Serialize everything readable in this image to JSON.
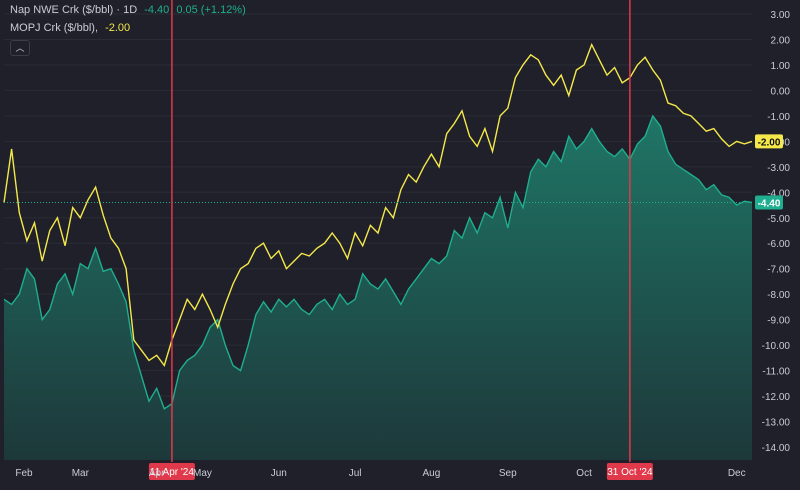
{
  "legend": {
    "series1_name": "Nap NWE Crk ($/bbl) · 1D",
    "series1_last": "-4.40",
    "series1_change": "0.05 (+1.12%)",
    "series2_name": "MOPJ Crk ($/bbl),",
    "series2_last": "-2.00",
    "collapse_icon": "chevron-up-icon"
  },
  "colors": {
    "background": "#1f2029",
    "grid": "#2a2c36",
    "axis_text": "#c9ccd6",
    "series1": "#1fae8f",
    "series1_fill_top": "#1f7a69",
    "series1_fill_bottom": "#1d3b3c",
    "series2": "#f5e84a",
    "crosshair": "#e0394b"
  },
  "chart_data": {
    "type": "area",
    "ylim": [
      -14.4,
      3.4
    ],
    "y_ticks": [
      "3.00",
      "2.00",
      "1.00",
      "0.00",
      "-1.00",
      "-2.00",
      "-3.00",
      "-4.00",
      "-5.00",
      "-6.00",
      "-7.00",
      "-8.00",
      "-9.00",
      "-10.00",
      "-11.00",
      "-12.00",
      "-13.00",
      "-14.00"
    ],
    "x_labels": [
      "Feb",
      "Mar",
      "Apr",
      "May",
      "Jun",
      "Jul",
      "Aug",
      "Sep",
      "Oct",
      "Dec"
    ],
    "x_label_pos": [
      0.0,
      1.0,
      2.0,
      2.6,
      3.6,
      4.6,
      5.6,
      6.6,
      7.6,
      9.6
    ],
    "series": [
      {
        "name": "Nap NWE Crk ($/bbl)",
        "last_value": -4.4,
        "x": [
          0,
          0.1,
          0.2,
          0.3,
          0.4,
          0.5,
          0.6,
          0.7,
          0.8,
          0.9,
          1.0,
          1.1,
          1.2,
          1.3,
          1.4,
          1.5,
          1.6,
          1.7,
          1.8,
          1.9,
          2.0,
          2.1,
          2.2,
          2.3,
          2.4,
          2.5,
          2.6,
          2.7,
          2.8,
          2.9,
          3.0,
          3.1,
          3.2,
          3.3,
          3.4,
          3.5,
          3.6,
          3.7,
          3.8,
          3.9,
          4.0,
          4.1,
          4.2,
          4.3,
          4.4,
          4.5,
          4.6,
          4.7,
          4.8,
          4.9,
          5.0,
          5.1,
          5.2,
          5.3,
          5.4,
          5.5,
          5.6,
          5.7,
          5.8,
          5.9,
          6.0,
          6.1,
          6.2,
          6.3,
          6.4,
          6.5,
          6.6,
          6.7,
          6.8,
          6.9,
          7.0,
          7.1,
          7.2,
          7.3,
          7.4,
          7.5,
          7.6,
          7.7,
          7.8,
          7.9,
          8.0,
          8.1,
          8.2,
          8.3,
          8.4,
          8.5,
          8.6,
          8.7,
          8.8,
          8.9,
          9.0,
          9.1,
          9.2,
          9.3,
          9.4,
          9.5,
          9.6,
          9.7,
          9.8
        ],
        "values": [
          -8.2,
          -8.4,
          -8.0,
          -7.0,
          -7.4,
          -9.0,
          -8.6,
          -7.6,
          -7.2,
          -8.0,
          -6.8,
          -7.0,
          -6.2,
          -7.1,
          -7.0,
          -7.6,
          -8.3,
          -10.2,
          -11.2,
          -12.2,
          -11.7,
          -12.5,
          -12.3,
          -11.0,
          -10.6,
          -10.4,
          -10.0,
          -9.3,
          -9.0,
          -10.0,
          -10.8,
          -11.0,
          -10.0,
          -8.8,
          -8.3,
          -8.7,
          -8.2,
          -8.5,
          -8.2,
          -8.6,
          -8.8,
          -8.4,
          -8.2,
          -8.6,
          -8.0,
          -8.4,
          -8.2,
          -7.2,
          -7.6,
          -7.8,
          -7.4,
          -7.9,
          -8.4,
          -7.8,
          -7.4,
          -7.0,
          -6.6,
          -6.8,
          -6.5,
          -5.5,
          -5.8,
          -5.0,
          -5.6,
          -4.8,
          -5.0,
          -4.2,
          -5.4,
          -4.0,
          -4.6,
          -3.2,
          -2.7,
          -3.0,
          -2.4,
          -2.8,
          -1.8,
          -2.3,
          -2.0,
          -1.5,
          -2.0,
          -2.4,
          -2.6,
          -2.3,
          -2.7,
          -2.1,
          -1.8,
          -1.0,
          -1.4,
          -2.4,
          -2.9,
          -3.1,
          -3.3,
          -3.5,
          -3.9,
          -3.7,
          -4.1,
          -4.2,
          -4.5,
          -4.35,
          -4.4
        ]
      },
      {
        "name": "MOPJ Crk ($/bbl)",
        "last_value": -2.0,
        "x": [
          0,
          0.1,
          0.2,
          0.3,
          0.4,
          0.5,
          0.6,
          0.7,
          0.8,
          0.9,
          1.0,
          1.1,
          1.2,
          1.3,
          1.4,
          1.5,
          1.6,
          1.7,
          1.8,
          1.9,
          2.0,
          2.1,
          2.2,
          2.3,
          2.4,
          2.5,
          2.6,
          2.7,
          2.8,
          2.9,
          3.0,
          3.1,
          3.2,
          3.3,
          3.4,
          3.5,
          3.6,
          3.7,
          3.8,
          3.9,
          4.0,
          4.1,
          4.2,
          4.3,
          4.4,
          4.5,
          4.6,
          4.7,
          4.8,
          4.9,
          5.0,
          5.1,
          5.2,
          5.3,
          5.4,
          5.5,
          5.6,
          5.7,
          5.8,
          5.9,
          6.0,
          6.1,
          6.2,
          6.3,
          6.4,
          6.5,
          6.6,
          6.7,
          6.8,
          6.9,
          7.0,
          7.1,
          7.2,
          7.3,
          7.4,
          7.5,
          7.6,
          7.7,
          7.8,
          7.9,
          8.0,
          8.1,
          8.2,
          8.3,
          8.4,
          8.5,
          8.6,
          8.7,
          8.8,
          8.9,
          9.0,
          9.1,
          9.2,
          9.3,
          9.4,
          9.5,
          9.6,
          9.7,
          9.8
        ],
        "values": [
          -4.4,
          -2.3,
          -4.8,
          -5.9,
          -5.2,
          -6.7,
          -5.5,
          -5.0,
          -6.1,
          -4.6,
          -5.0,
          -4.3,
          -3.8,
          -4.9,
          -5.8,
          -6.2,
          -7.0,
          -9.8,
          -10.2,
          -10.6,
          -10.4,
          -10.8,
          -9.8,
          -9.0,
          -8.2,
          -8.6,
          -8.0,
          -8.6,
          -9.3,
          -8.4,
          -7.6,
          -7.0,
          -6.8,
          -6.2,
          -6.0,
          -6.6,
          -6.3,
          -7.0,
          -6.7,
          -6.4,
          -6.5,
          -6.2,
          -6.0,
          -5.6,
          -6.0,
          -6.6,
          -5.6,
          -6.1,
          -5.3,
          -5.6,
          -4.6,
          -5.0,
          -3.9,
          -3.3,
          -3.6,
          -3.0,
          -2.5,
          -3.0,
          -1.7,
          -1.3,
          -0.8,
          -1.8,
          -2.2,
          -1.5,
          -2.4,
          -1.0,
          -0.7,
          0.5,
          1.0,
          1.4,
          1.2,
          0.6,
          0.2,
          0.6,
          -0.2,
          0.8,
          1.0,
          1.8,
          1.2,
          0.6,
          0.9,
          0.3,
          0.5,
          1.0,
          1.3,
          0.8,
          0.4,
          -0.5,
          -0.6,
          -0.9,
          -1.0,
          -1.3,
          -1.6,
          -1.5,
          -1.9,
          -2.2,
          -2.0,
          -2.1,
          -2.0
        ]
      }
    ],
    "highlights": [
      {
        "x": 2.2,
        "label": "11 Apr '24"
      },
      {
        "x": 8.2,
        "label": "31 Oct '24"
      }
    ]
  }
}
